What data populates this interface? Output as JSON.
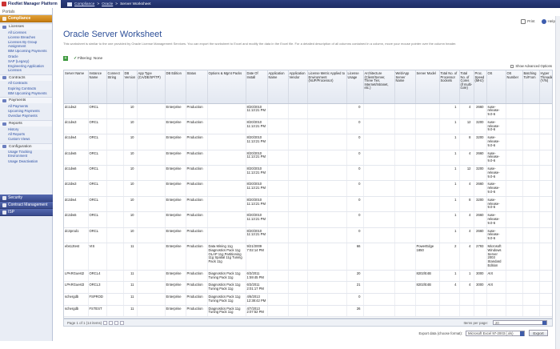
{
  "app": {
    "logo": "FlexNet Manager Platform"
  },
  "breadcrumb": {
    "home": "",
    "part1": "Compliance",
    "sep": ">",
    "part2": "Oracle",
    "part3": "Server Worksheet"
  },
  "sidebar": {
    "portals": "Portals",
    "compliance": "Compliance",
    "groups": [
      {
        "label": "Licenses",
        "items": [
          "All Licenses",
          "License Breaches",
          "Licenses By Group Assignment",
          "IBM Upcoming Payments",
          "Oracle",
          "SAP (Legacy)",
          "Engineering Application Licenses"
        ]
      },
      {
        "label": "Contracts",
        "items": [
          "All Contracts",
          "Expiring Contracts",
          "IBM Upcoming Payments"
        ]
      },
      {
        "label": "Payments",
        "items": [
          "All Payments",
          "Upcoming Payments",
          "Overdue Payments"
        ]
      },
      {
        "label": "Reports",
        "items": [
          "History",
          "All Reports",
          "Custom Views"
        ]
      },
      {
        "label": "Configuration",
        "items": [
          "Usage Tracking Environment",
          "Usage Deactivation"
        ]
      }
    ],
    "bottom": [
      "Security",
      "Contract Management",
      "ISP"
    ]
  },
  "toolbar": {
    "print": "Print",
    "help": "Help"
  },
  "page": {
    "title": "Oracle Server Worksheet",
    "desc": "This worksheet is similar to the one provided by Oracle License Management Services. You can export the worksheet to Excel and modify the data in the Excel file. For a detailed description of all columns contained in a column, move your mouse pointer over the column header."
  },
  "filter": {
    "add": "+",
    "label": "Filtering: None",
    "advanced": "Show Advanced Options"
  },
  "table": {
    "columns": [
      "Server Name",
      "Instance Name",
      "Connect String",
      "DB Version",
      "App Type (CA/DE/SP/TP)",
      "DB Edition",
      "Status",
      "Options & Mgmt Packs",
      "Date Of Install",
      "Application Name",
      "Application Vendor",
      "License Metric Applied to Environment (NUP/Processor)",
      "License Usage",
      "Architecture (Client/Server, Three Tier, Internet/Intranet, etc.)",
      "Web/App Server Name",
      "Server Model",
      "Total No. of Processor Sockets",
      "Total No. of Cores (if multi-core)",
      "Proc. Speed (MHz)",
      "OS",
      "OS Number",
      "Batching To/From",
      "Hyper Threading (Y/N)"
    ],
    "rows": [
      [
        "dc1dw2",
        "ORCL",
        "",
        "10",
        "",
        "Enterprise",
        "Production",
        "",
        "8/20/2010 11:13:21 PM",
        "",
        "",
        "",
        "0",
        "",
        "",
        "",
        "1",
        "4",
        "2660",
        "suse-release-9.0-6",
        "",
        "",
        ""
      ],
      [
        "dc1dw3",
        "ORCL",
        "",
        "10",
        "",
        "Enterprise",
        "Production",
        "",
        "8/20/2010 11:13:21 PM",
        "",
        "",
        "",
        "0",
        "",
        "",
        "",
        "1",
        "12",
        "3200",
        "suse-release-9.0-6",
        "",
        "",
        ""
      ],
      [
        "dc1dw4",
        "ORCL",
        "",
        "10",
        "",
        "Enterprise",
        "Production",
        "",
        "8/20/2010 11:13:21 PM",
        "",
        "",
        "",
        "0",
        "",
        "",
        "",
        "1",
        "8",
        "3200",
        "suse-release-9.0-6",
        "",
        "",
        ""
      ],
      [
        "dc1dw5",
        "ORCL",
        "",
        "10",
        "",
        "Enterprise",
        "Production",
        "",
        "8/20/2010 11:13:21 PM",
        "",
        "",
        "",
        "0",
        "",
        "",
        "",
        "1",
        "4",
        "2660",
        "suse-release-9.0-6",
        "",
        "",
        ""
      ],
      [
        "dc1dw6",
        "ORCL",
        "",
        "10",
        "",
        "Enterprise",
        "Production",
        "",
        "8/20/2010 11:13:21 PM",
        "",
        "",
        "",
        "0",
        "",
        "",
        "",
        "1",
        "12",
        "3200",
        "suse-release-9.0-6",
        "",
        "",
        ""
      ],
      [
        "dc2dw3",
        "ORCL",
        "",
        "10",
        "",
        "Enterprise",
        "Production",
        "",
        "8/20/2010 11:13:21 PM",
        "",
        "",
        "",
        "0",
        "",
        "",
        "",
        "1",
        "4",
        "2660",
        "suse-release-9.0-6",
        "",
        "",
        ""
      ],
      [
        "dc2dw4",
        "ORCL",
        "",
        "10",
        "",
        "Enterprise",
        "Production",
        "",
        "8/20/2010 11:13:21 PM",
        "",
        "",
        "",
        "0",
        "",
        "",
        "",
        "1",
        "8",
        "3200",
        "suse-release-9.0-6",
        "",
        "",
        ""
      ],
      [
        "dc2dw5",
        "ORCL",
        "",
        "10",
        "",
        "Enterprise",
        "Production",
        "",
        "8/20/2010 11:13:21 PM",
        "",
        "",
        "",
        "0",
        "",
        "",
        "",
        "1",
        "4",
        "2660",
        "suse-release-9.0-6",
        "",
        "",
        ""
      ],
      [
        "dc3prod1",
        "ORCL",
        "",
        "10",
        "",
        "Enterprise",
        "Production",
        "",
        "8/20/2010 11:13:21 PM",
        "",
        "",
        "",
        "0",
        "",
        "",
        "",
        "1",
        "4",
        "2660",
        "suse-release-9.0-6",
        "",
        "",
        ""
      ],
      [
        "ebs12test",
        "VIS",
        "",
        "11",
        "",
        "Enterprise",
        "Production",
        "Data Mining 11g Diagnostics Pack 11g OLAP 11g Partitioning 11g Spatial 11g Tuning Pack 11g",
        "9/21/2009 7:02:14 PM",
        "",
        "",
        "",
        "66",
        "",
        "",
        "PowerEdge 1850",
        "2",
        "4",
        "2793",
        "Microsoft Windows Server 2003 Standard Edition",
        "",
        "",
        ""
      ],
      [
        "LPARGuest2",
        "ORCL4",
        "",
        "11",
        "",
        "Enterprise",
        "Production",
        "Diagnostics Pack 11g Tuning Pack 11g",
        "6/3/2011 1:59:45 PM",
        "",
        "",
        "",
        "20",
        "",
        "",
        "8202/E4B",
        "1",
        "1",
        "3000",
        "AIX",
        "",
        "",
        ""
      ],
      [
        "LPARGuest3",
        "ORCL3",
        "",
        "11",
        "",
        "Enterprise",
        "Production",
        "Diagnostics Pack 11g Tuning Pack 11g",
        "6/3/2011 2:01:17 PM",
        "",
        "",
        "",
        "21",
        "",
        "",
        "8202/E4B",
        "4",
        "4",
        "3000",
        "AIX",
        "",
        "",
        ""
      ],
      [
        "schergdb",
        "FSPROD",
        "",
        "11",
        "",
        "Enterprise",
        "Production",
        "Diagnostics Pack 11g Tuning Pack 11g",
        "4/6/2013 12:38:42 PM",
        "",
        "",
        "",
        "0",
        "",
        "",
        "",
        "",
        "",
        "",
        "",
        "",
        "",
        ""
      ],
      [
        "schergdb",
        "FSTEST",
        "",
        "11",
        "",
        "Enterprise",
        "Production",
        "Diagnostics Pack 11g Tuning Pack 11g",
        "4/7/2013 2:07:52 PM",
        "",
        "",
        "",
        "26",
        "",
        "",
        "",
        "",
        "",
        "",
        "",
        "",
        "",
        ""
      ]
    ]
  },
  "pager": {
    "info": "Page 1 of 1 (14 items)",
    "items_per_page_label": "Items per page:",
    "items_per_page": "20"
  },
  "export": {
    "label": "Export data (choose format):",
    "format": "Microsoft Excel 97-2003 (.xls)",
    "button": "Export"
  }
}
